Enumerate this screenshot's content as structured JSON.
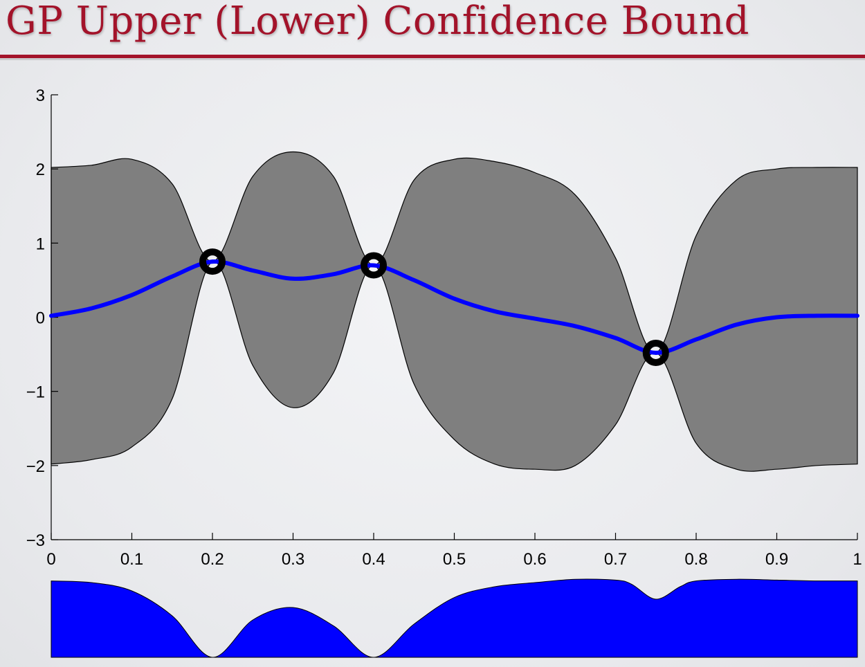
{
  "slide": {
    "title": "GP Upper (Lower) Confidence Bound",
    "title_color": "#a3132a"
  },
  "chart_data": [
    {
      "type": "line",
      "title": "",
      "xlabel": "",
      "ylabel": "",
      "xlim": [
        0,
        1
      ],
      "ylim": [
        -3,
        3
      ],
      "xticks": [
        0,
        0.1,
        0.2,
        0.3,
        0.4,
        0.5,
        0.6,
        0.7,
        0.8,
        0.9,
        1
      ],
      "xtick_labels": [
        "0",
        "0.1",
        "0.2",
        "0.3",
        "0.4",
        "0.5",
        "0.6",
        "0.7",
        "0.8",
        "0.9",
        "1"
      ],
      "yticks": [
        -3,
        -2,
        -1,
        0,
        1,
        2,
        3
      ],
      "ytick_labels": [
        "−3",
        "−2",
        "−1",
        "0",
        "1",
        "2",
        "3"
      ],
      "grid": false,
      "colors": {
        "mean": "#0000ff",
        "band": "#7f7f7f",
        "band_edge": "#000000",
        "points": "#000000"
      },
      "series": [
        {
          "style": "mean",
          "x": [
            0,
            0.05,
            0.1,
            0.15,
            0.2,
            0.25,
            0.3,
            0.35,
            0.4,
            0.45,
            0.5,
            0.55,
            0.6,
            0.65,
            0.7,
            0.75,
            0.8,
            0.85,
            0.9,
            0.95,
            1
          ],
          "y": [
            0.02,
            0.12,
            0.3,
            0.55,
            0.75,
            0.63,
            0.52,
            0.58,
            0.7,
            0.5,
            0.25,
            0.08,
            -0.02,
            -0.12,
            -0.28,
            -0.48,
            -0.3,
            -0.1,
            0.0,
            0.02,
            0.02
          ]
        },
        {
          "style": "upper",
          "x": [
            0,
            0.05,
            0.1,
            0.15,
            0.2,
            0.25,
            0.3,
            0.35,
            0.4,
            0.45,
            0.5,
            0.55,
            0.6,
            0.65,
            0.7,
            0.75,
            0.8,
            0.85,
            0.9,
            0.95,
            1
          ],
          "y": [
            2.02,
            2.05,
            2.13,
            1.8,
            0.75,
            1.9,
            2.23,
            1.9,
            0.7,
            1.85,
            2.13,
            2.1,
            1.95,
            1.65,
            0.8,
            -0.48,
            1.1,
            1.85,
            2.0,
            2.02,
            2.02
          ]
        },
        {
          "style": "lower",
          "x": [
            0,
            0.05,
            0.1,
            0.15,
            0.2,
            0.25,
            0.3,
            0.35,
            0.4,
            0.45,
            0.5,
            0.55,
            0.6,
            0.65,
            0.7,
            0.75,
            0.8,
            0.85,
            0.9,
            0.95,
            1
          ],
          "y": [
            -1.98,
            -1.92,
            -1.75,
            -1.1,
            0.75,
            -0.65,
            -1.22,
            -0.75,
            0.7,
            -0.9,
            -1.65,
            -1.98,
            -2.05,
            -2.0,
            -1.45,
            -0.48,
            -1.7,
            -2.05,
            -2.05,
            -2.0,
            -1.98
          ]
        },
        {
          "style": "observations",
          "x": [
            0.2,
            0.4,
            0.75
          ],
          "y": [
            0.75,
            0.7,
            -0.48
          ]
        }
      ]
    },
    {
      "type": "area",
      "title": "",
      "xlim": [
        0,
        1
      ],
      "ylim": [
        0,
        1
      ],
      "color": "#0000ff",
      "x": [
        0,
        0.05,
        0.1,
        0.15,
        0.2,
        0.25,
        0.3,
        0.35,
        0.4,
        0.45,
        0.5,
        0.55,
        0.6,
        0.65,
        0.7,
        0.72,
        0.75,
        0.78,
        0.8,
        0.85,
        0.9,
        0.95,
        1
      ],
      "values": [
        0.92,
        0.9,
        0.8,
        0.5,
        0.0,
        0.45,
        0.6,
        0.38,
        0.0,
        0.4,
        0.72,
        0.85,
        0.9,
        0.94,
        0.93,
        0.88,
        0.7,
        0.85,
        0.92,
        0.94,
        0.93,
        0.92,
        0.92
      ]
    }
  ]
}
